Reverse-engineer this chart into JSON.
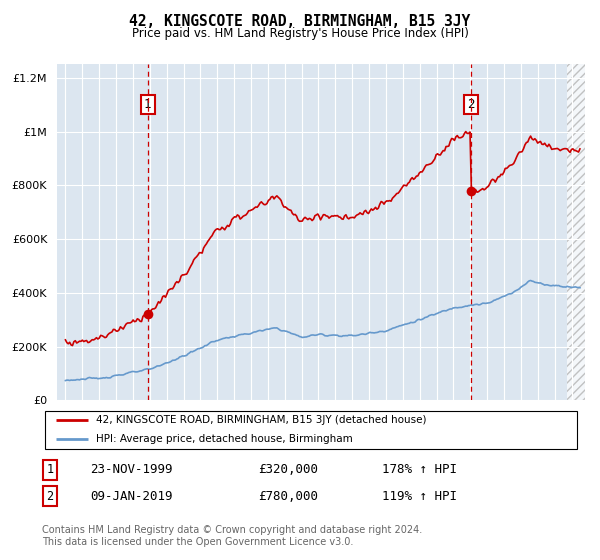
{
  "title": "42, KINGSCOTE ROAD, BIRMINGHAM, B15 3JY",
  "subtitle": "Price paid vs. HM Land Registry's House Price Index (HPI)",
  "legend_line1": "42, KINGSCOTE ROAD, BIRMINGHAM, B15 3JY (detached house)",
  "legend_line2": "HPI: Average price, detached house, Birmingham",
  "annotation1": {
    "label": "1",
    "date": "23-NOV-1999",
    "price": "£320,000",
    "hpi": "178% ↑ HPI",
    "x_year": 1999.89
  },
  "annotation2": {
    "label": "2",
    "date": "09-JAN-2019",
    "price": "£780,000",
    "hpi": "119% ↑ HPI",
    "x_year": 2019.03
  },
  "footer": "Contains HM Land Registry data © Crown copyright and database right 2024.\nThis data is licensed under the Open Government Licence v3.0.",
  "property_color": "#cc0000",
  "hpi_color": "#6699cc",
  "plot_bg_color": "#dce6f0",
  "ylim": [
    0,
    1250000
  ],
  "xlim_start": 1994.5,
  "xlim_end": 2025.8
}
